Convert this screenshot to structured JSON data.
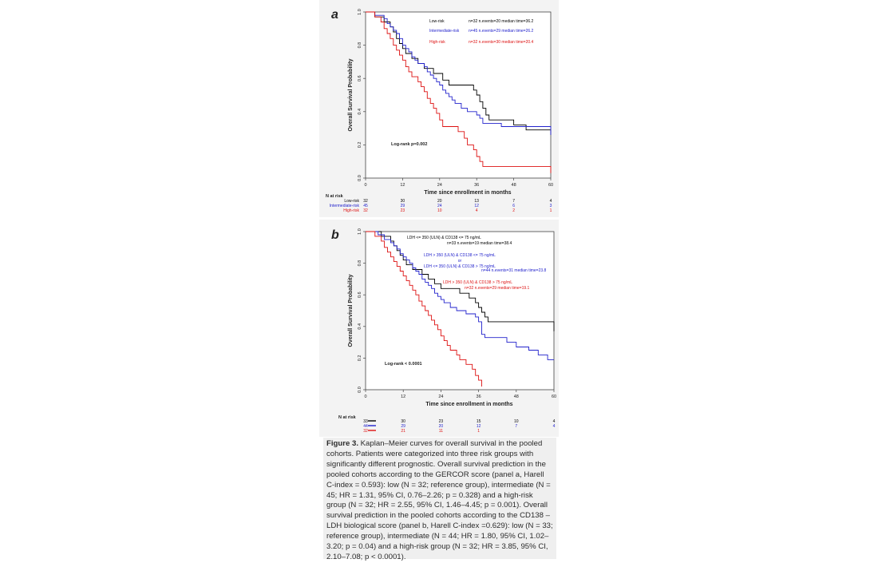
{
  "figure": {
    "caption_title": "Figure 3.",
    "caption_body": "Kaplan–Meier curves for overall survival in the pooled cohorts. Patients were categorized into three risk groups with significantly different prognostic. Overall survival prediction in the pooled cohorts according to the GERCOR score (panel a, Harell C-index = 0.593): low (N = 32; reference group), intermediate (N = 45; HR = 1.31, 95% CI, 0.76–2.26; p = 0.328) and a high-risk group (N = 32; HR = 2.55, 95% CI, 1.46–4.45; p = 0.001). Overall survival prediction in the pooled cohorts according to the CD138 – LDH biological score (panel b, Harell C-index =0.629): low (N = 33; reference group), intermediate (N = 44; HR = 1.80, 95% CI, 1.02–3.20; p = 0.04) and a high-risk group (N = 32; HR = 3.85, 95% CI, 2.10–7.08; p < 0.0001)."
  },
  "chart_data": [
    {
      "type": "line",
      "panel_label": "a",
      "xlabel": "Time since enrollment in months",
      "ylabel": "Overall Survival Probability",
      "xlim": [
        0,
        60
      ],
      "ylim": [
        0,
        1
      ],
      "xticks": [
        0,
        12,
        24,
        36,
        48,
        60
      ],
      "yticks": [
        0.0,
        0.2,
        0.4,
        0.6,
        0.8,
        1.0
      ],
      "annotation": "Log-rank p=0.002",
      "risk_table_title": "N at risk",
      "risk_table_times": [
        0,
        12,
        24,
        36,
        48,
        60
      ],
      "series": [
        {
          "name": "Low-risk",
          "legend_stats": "n=32   n.events=20   median time=36.2",
          "color": "#000000",
          "at_risk": [
            "32",
            "30",
            "20",
            "13",
            "7",
            "4"
          ],
          "steps": [
            [
              0,
              1.0
            ],
            [
              3,
              0.97
            ],
            [
              6,
              0.94
            ],
            [
              8,
              0.91
            ],
            [
              9,
              0.88
            ],
            [
              10,
              0.84
            ],
            [
              11,
              0.81
            ],
            [
              12,
              0.78
            ],
            [
              13,
              0.75
            ],
            [
              15,
              0.72
            ],
            [
              17,
              0.69
            ],
            [
              19,
              0.66
            ],
            [
              21,
              0.66
            ],
            [
              22,
              0.63
            ],
            [
              25,
              0.59
            ],
            [
              27,
              0.56
            ],
            [
              32,
              0.56
            ],
            [
              35,
              0.53
            ],
            [
              36,
              0.5
            ],
            [
              37,
              0.46
            ],
            [
              38,
              0.42
            ],
            [
              39,
              0.38
            ],
            [
              40,
              0.35
            ],
            [
              45,
              0.35
            ],
            [
              48,
              0.32
            ],
            [
              50,
              0.32
            ],
            [
              52,
              0.29
            ],
            [
              59.9,
              0.29
            ],
            [
              60,
              0.26
            ]
          ]
        },
        {
          "name": "Intermediate-risk",
          "legend_stats": "n=45   n.events=29   median time=26.2",
          "color": "#2222cc",
          "at_risk": [
            "45",
            "29",
            "24",
            "12",
            "6",
            "3"
          ],
          "steps": [
            [
              0,
              1.0
            ],
            [
              3,
              0.98
            ],
            [
              6,
              0.96
            ],
            [
              7,
              0.93
            ],
            [
              8,
              0.91
            ],
            [
              9,
              0.89
            ],
            [
              10,
              0.87
            ],
            [
              11,
              0.84
            ],
            [
              12,
              0.8
            ],
            [
              13,
              0.78
            ],
            [
              14,
              0.76
            ],
            [
              15,
              0.73
            ],
            [
              16,
              0.71
            ],
            [
              17,
              0.69
            ],
            [
              18,
              0.69
            ],
            [
              19,
              0.67
            ],
            [
              20,
              0.64
            ],
            [
              21,
              0.62
            ],
            [
              22,
              0.6
            ],
            [
              23,
              0.58
            ],
            [
              24,
              0.56
            ],
            [
              25,
              0.53
            ],
            [
              26,
              0.51
            ],
            [
              27,
              0.49
            ],
            [
              28,
              0.47
            ],
            [
              29,
              0.45
            ],
            [
              30,
              0.45
            ],
            [
              31,
              0.42
            ],
            [
              33,
              0.4
            ],
            [
              36,
              0.38
            ],
            [
              37,
              0.36
            ],
            [
              38,
              0.33
            ],
            [
              40,
              0.33
            ],
            [
              44,
              0.31
            ],
            [
              59.9,
              0.31
            ],
            [
              60,
              0.26
            ]
          ]
        },
        {
          "name": "High-risk",
          "legend_stats": "n=32   n.events=30   median time=20.4",
          "color": "#dd1111",
          "at_risk": [
            "32",
            "23",
            "10",
            "4",
            "2",
            "1"
          ],
          "steps": [
            [
              0,
              1.0
            ],
            [
              3,
              0.97
            ],
            [
              5,
              0.94
            ],
            [
              6,
              0.9
            ],
            [
              7,
              0.87
            ],
            [
              8,
              0.84
            ],
            [
              9,
              0.8
            ],
            [
              10,
              0.77
            ],
            [
              11,
              0.74
            ],
            [
              12,
              0.71
            ],
            [
              13,
              0.67
            ],
            [
              14,
              0.64
            ],
            [
              15,
              0.61
            ],
            [
              17,
              0.58
            ],
            [
              18,
              0.55
            ],
            [
              19,
              0.52
            ],
            [
              20,
              0.48
            ],
            [
              21,
              0.45
            ],
            [
              22,
              0.42
            ],
            [
              23,
              0.39
            ],
            [
              24,
              0.35
            ],
            [
              25,
              0.31
            ],
            [
              26,
              0.31
            ],
            [
              29,
              0.31
            ],
            [
              30,
              0.28
            ],
            [
              32,
              0.24
            ],
            [
              33,
              0.2
            ],
            [
              35,
              0.17
            ],
            [
              36,
              0.13
            ],
            [
              37,
              0.1
            ],
            [
              38,
              0.07
            ],
            [
              59,
              0.07
            ],
            [
              60,
              0.03
            ]
          ]
        }
      ]
    },
    {
      "type": "line",
      "panel_label": "b",
      "xlabel": "Time since enrollment in months",
      "ylabel": "Overall Survival Probability",
      "xlim": [
        0,
        60
      ],
      "ylim": [
        0,
        1
      ],
      "xticks": [
        0,
        12,
        24,
        36,
        48,
        60
      ],
      "yticks": [
        0.0,
        0.2,
        0.4,
        0.6,
        0.8,
        1.0
      ],
      "annotation": "Log-rank  < 0.0001",
      "risk_table_title": "N at risk",
      "risk_table_times": [
        0,
        12,
        24,
        36,
        48,
        60
      ],
      "series": [
        {
          "name": "LDH <= 350 (ULN) & CD138 <= 75 ng/mL",
          "legend_stats": "n=33   n.events=19   median time=38.4",
          "color": "#000000",
          "at_risk": [
            "33",
            "30",
            "23",
            "15",
            "10",
            "4"
          ],
          "steps": [
            [
              0,
              1.0
            ],
            [
              5,
              0.97
            ],
            [
              8,
              0.94
            ],
            [
              9,
              0.91
            ],
            [
              10,
              0.88
            ],
            [
              11,
              0.85
            ],
            [
              12,
              0.82
            ],
            [
              13,
              0.79
            ],
            [
              15,
              0.76
            ],
            [
              18,
              0.73
            ],
            [
              19,
              0.73
            ],
            [
              20,
              0.7
            ],
            [
              22,
              0.67
            ],
            [
              24,
              0.64
            ],
            [
              28,
              0.64
            ],
            [
              30,
              0.61
            ],
            [
              32,
              0.61
            ],
            [
              33,
              0.58
            ],
            [
              35,
              0.55
            ],
            [
              36,
              0.52
            ],
            [
              37,
              0.49
            ],
            [
              38,
              0.46
            ],
            [
              39,
              0.43
            ],
            [
              59.9,
              0.43
            ],
            [
              60,
              0.37
            ]
          ]
        },
        {
          "name": "LDH > 350 (ULN) & CD138 <= 75 ng/mL\nor\nLDH <= 350 (ULN) & CD138 > 75 ng/mL",
          "legend_stats": "n=44   n.events=31   median time=23.8",
          "color": "#2222cc",
          "at_risk": [
            "44",
            "29",
            "20",
            "12",
            "7",
            "4"
          ],
          "steps": [
            [
              0,
              1.0
            ],
            [
              4,
              0.98
            ],
            [
              6,
              0.95
            ],
            [
              8,
              0.93
            ],
            [
              9,
              0.91
            ],
            [
              10,
              0.89
            ],
            [
              11,
              0.86
            ],
            [
              12,
              0.84
            ],
            [
              13,
              0.82
            ],
            [
              14,
              0.8
            ],
            [
              15,
              0.77
            ],
            [
              16,
              0.75
            ],
            [
              17,
              0.73
            ],
            [
              18,
              0.7
            ],
            [
              19,
              0.68
            ],
            [
              20,
              0.66
            ],
            [
              21,
              0.64
            ],
            [
              22,
              0.61
            ],
            [
              23,
              0.59
            ],
            [
              24,
              0.57
            ],
            [
              25,
              0.55
            ],
            [
              27,
              0.52
            ],
            [
              29,
              0.5
            ],
            [
              32,
              0.48
            ],
            [
              35,
              0.46
            ],
            [
              36,
              0.43
            ],
            [
              37,
              0.35
            ],
            [
              38,
              0.33
            ],
            [
              42,
              0.33
            ],
            [
              45,
              0.3
            ],
            [
              48,
              0.27
            ],
            [
              52,
              0.25
            ],
            [
              55,
              0.22
            ],
            [
              58,
              0.19
            ],
            [
              60,
              0.19
            ]
          ]
        },
        {
          "name": "LDH > 350 (ULN) & CD138 > 75 ng/mL",
          "legend_stats": "n=32   n.events=29   median time=19.1",
          "color": "#dd1111",
          "at_risk": [
            "32",
            "21",
            "11",
            "1",
            "",
            ""
          ],
          "steps": [
            [
              0,
              1.0
            ],
            [
              3,
              0.97
            ],
            [
              5,
              0.94
            ],
            [
              6,
              0.9
            ],
            [
              7,
              0.87
            ],
            [
              8,
              0.84
            ],
            [
              9,
              0.81
            ],
            [
              10,
              0.78
            ],
            [
              11,
              0.75
            ],
            [
              12,
              0.72
            ],
            [
              13,
              0.69
            ],
            [
              14,
              0.66
            ],
            [
              15,
              0.63
            ],
            [
              16,
              0.6
            ],
            [
              17,
              0.56
            ],
            [
              18,
              0.53
            ],
            [
              19,
              0.5
            ],
            [
              20,
              0.47
            ],
            [
              21,
              0.44
            ],
            [
              22,
              0.41
            ],
            [
              23,
              0.38
            ],
            [
              24,
              0.34
            ],
            [
              25,
              0.31
            ],
            [
              26,
              0.28
            ],
            [
              27,
              0.25
            ],
            [
              29,
              0.22
            ],
            [
              30,
              0.19
            ],
            [
              32,
              0.16
            ],
            [
              34,
              0.13
            ],
            [
              35,
              0.09
            ],
            [
              36,
              0.06
            ],
            [
              37,
              0.02
            ]
          ]
        }
      ]
    }
  ]
}
